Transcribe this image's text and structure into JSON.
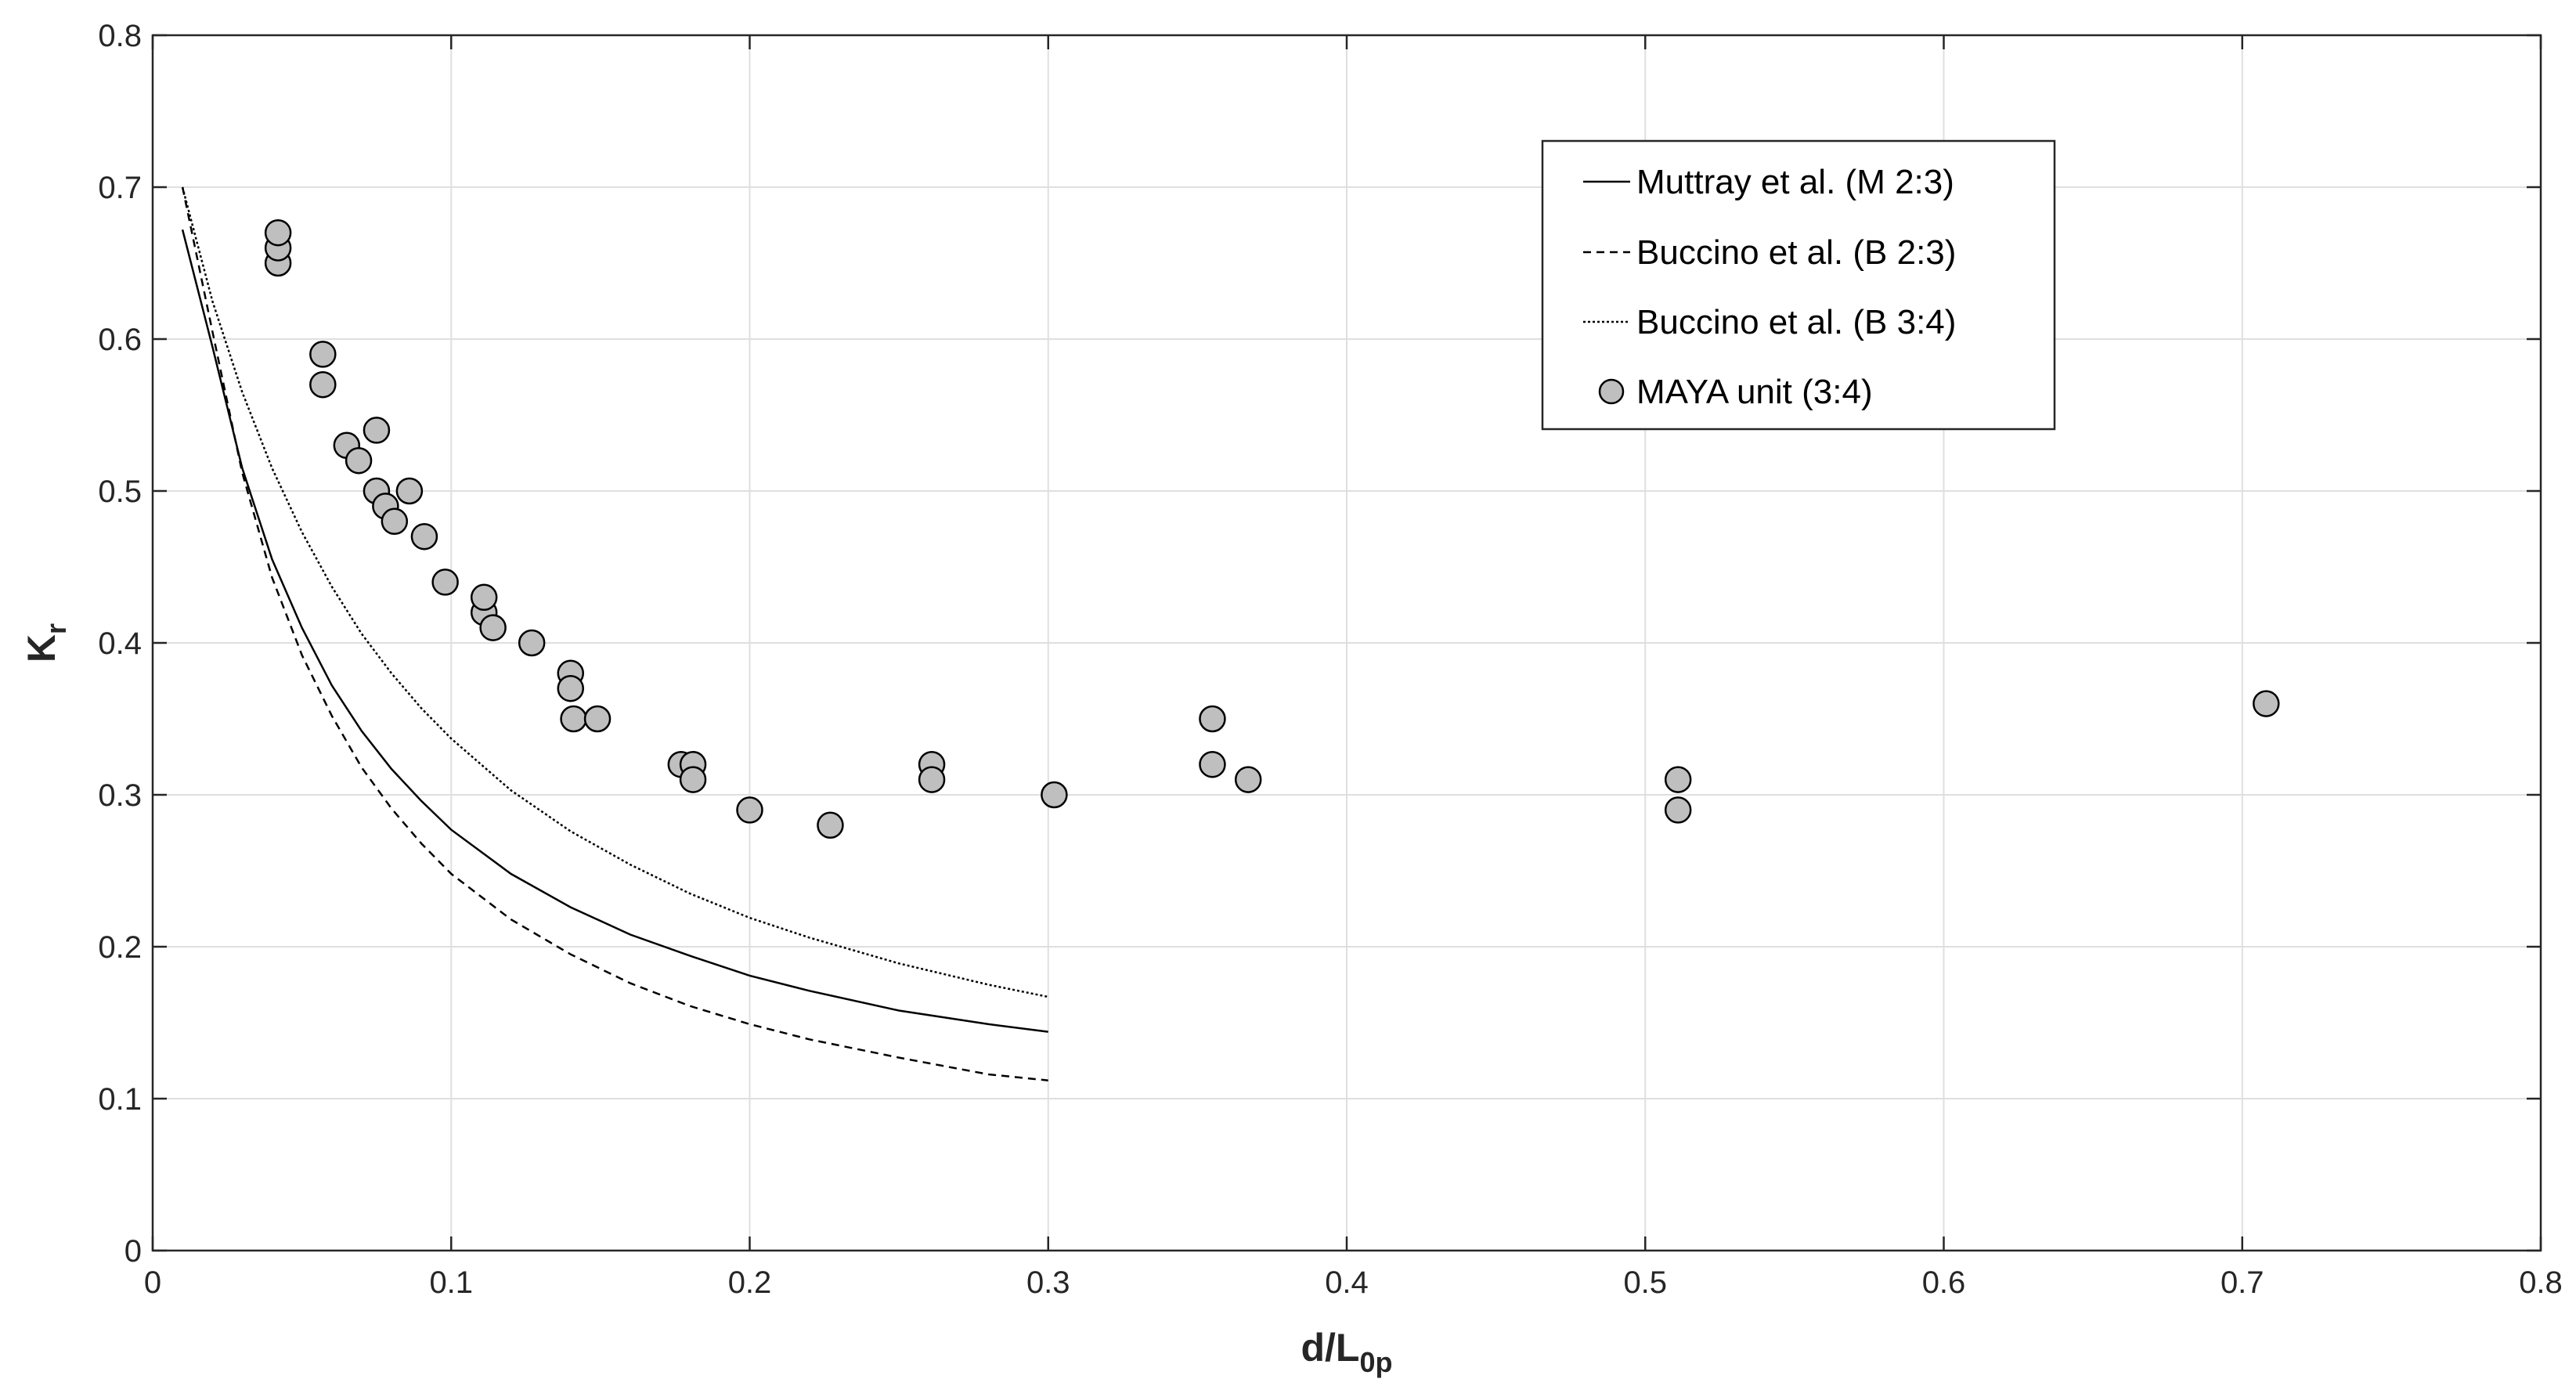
{
  "colors": {
    "background": "#ffffff",
    "axis": "#262626",
    "grid": "#dfdfdf",
    "line": "#000000",
    "marker_fill": "#bfbfbf",
    "marker_edge": "#000000"
  },
  "chart_data": {
    "type": "scatter",
    "title": "",
    "xlabel": "d/L",
    "xlabel_sub": "0p",
    "ylabel": "K",
    "ylabel_sub": "r",
    "xlim": [
      0,
      0.8
    ],
    "ylim": [
      0,
      0.8
    ],
    "grid": true,
    "legend_position": "top-right",
    "x_ticks": [
      0,
      0.1,
      0.2,
      0.3,
      0.4,
      0.5,
      0.6,
      0.7,
      0.8
    ],
    "x_tick_labels": [
      "0",
      "0.1",
      "0.2",
      "0.3",
      "0.4",
      "0.5",
      "0.6",
      "0.7",
      "0.8"
    ],
    "y_ticks": [
      0,
      0.1,
      0.2,
      0.3,
      0.4,
      0.5,
      0.6,
      0.7,
      0.8
    ],
    "y_tick_labels": [
      "0",
      "0.1",
      "0.2",
      "0.3",
      "0.4",
      "0.5",
      "0.6",
      "0.7",
      "0.8"
    ],
    "series": [
      {
        "name": "Muttray et al. (M 2:3)",
        "kind": "line",
        "style": "solid",
        "x": [
          0.01,
          0.02,
          0.03,
          0.04,
          0.05,
          0.06,
          0.07,
          0.08,
          0.09,
          0.1,
          0.12,
          0.14,
          0.16,
          0.18,
          0.2,
          0.22,
          0.25,
          0.28,
          0.3
        ],
        "y": [
          0.672,
          0.595,
          0.515,
          0.455,
          0.41,
          0.372,
          0.342,
          0.317,
          0.296,
          0.277,
          0.248,
          0.226,
          0.208,
          0.194,
          0.181,
          0.171,
          0.158,
          0.149,
          0.144
        ]
      },
      {
        "name": "Buccino et al. (B 2:3)",
        "kind": "line",
        "style": "dashed",
        "x": [
          0.01,
          0.02,
          0.03,
          0.04,
          0.05,
          0.06,
          0.07,
          0.08,
          0.09,
          0.1,
          0.12,
          0.14,
          0.16,
          0.18,
          0.2,
          0.22,
          0.25,
          0.28,
          0.3
        ],
        "y": [
          0.7,
          0.605,
          0.512,
          0.443,
          0.392,
          0.352,
          0.318,
          0.291,
          0.268,
          0.248,
          0.218,
          0.195,
          0.176,
          0.161,
          0.149,
          0.139,
          0.127,
          0.116,
          0.112
        ]
      },
      {
        "name": "Buccino et al. (B 3:4)",
        "kind": "line",
        "style": "dotted",
        "x": [
          0.01,
          0.02,
          0.03,
          0.04,
          0.05,
          0.06,
          0.07,
          0.08,
          0.09,
          0.1,
          0.12,
          0.14,
          0.16,
          0.18,
          0.2,
          0.22,
          0.25,
          0.28,
          0.3
        ],
        "y": [
          0.7,
          0.625,
          0.565,
          0.515,
          0.473,
          0.437,
          0.406,
          0.38,
          0.357,
          0.337,
          0.303,
          0.276,
          0.254,
          0.235,
          0.219,
          0.206,
          0.189,
          0.175,
          0.167
        ]
      },
      {
        "name": "MAYA unit (3:4)",
        "kind": "scatter",
        "x": [
          0.042,
          0.042,
          0.042,
          0.057,
          0.057,
          0.065,
          0.069,
          0.075,
          0.075,
          0.078,
          0.081,
          0.086,
          0.091,
          0.098,
          0.111,
          0.111,
          0.114,
          0.127,
          0.14,
          0.14,
          0.141,
          0.149,
          0.177,
          0.181,
          0.181,
          0.2,
          0.227,
          0.261,
          0.261,
          0.302,
          0.355,
          0.355,
          0.367,
          0.511,
          0.511,
          0.708
        ],
        "y": [
          0.65,
          0.66,
          0.67,
          0.59,
          0.57,
          0.53,
          0.52,
          0.54,
          0.5,
          0.49,
          0.48,
          0.5,
          0.47,
          0.44,
          0.42,
          0.43,
          0.41,
          0.4,
          0.38,
          0.37,
          0.35,
          0.35,
          0.32,
          0.32,
          0.31,
          0.29,
          0.28,
          0.32,
          0.31,
          0.3,
          0.35,
          0.32,
          0.31,
          0.31,
          0.29,
          0.36
        ]
      }
    ]
  }
}
